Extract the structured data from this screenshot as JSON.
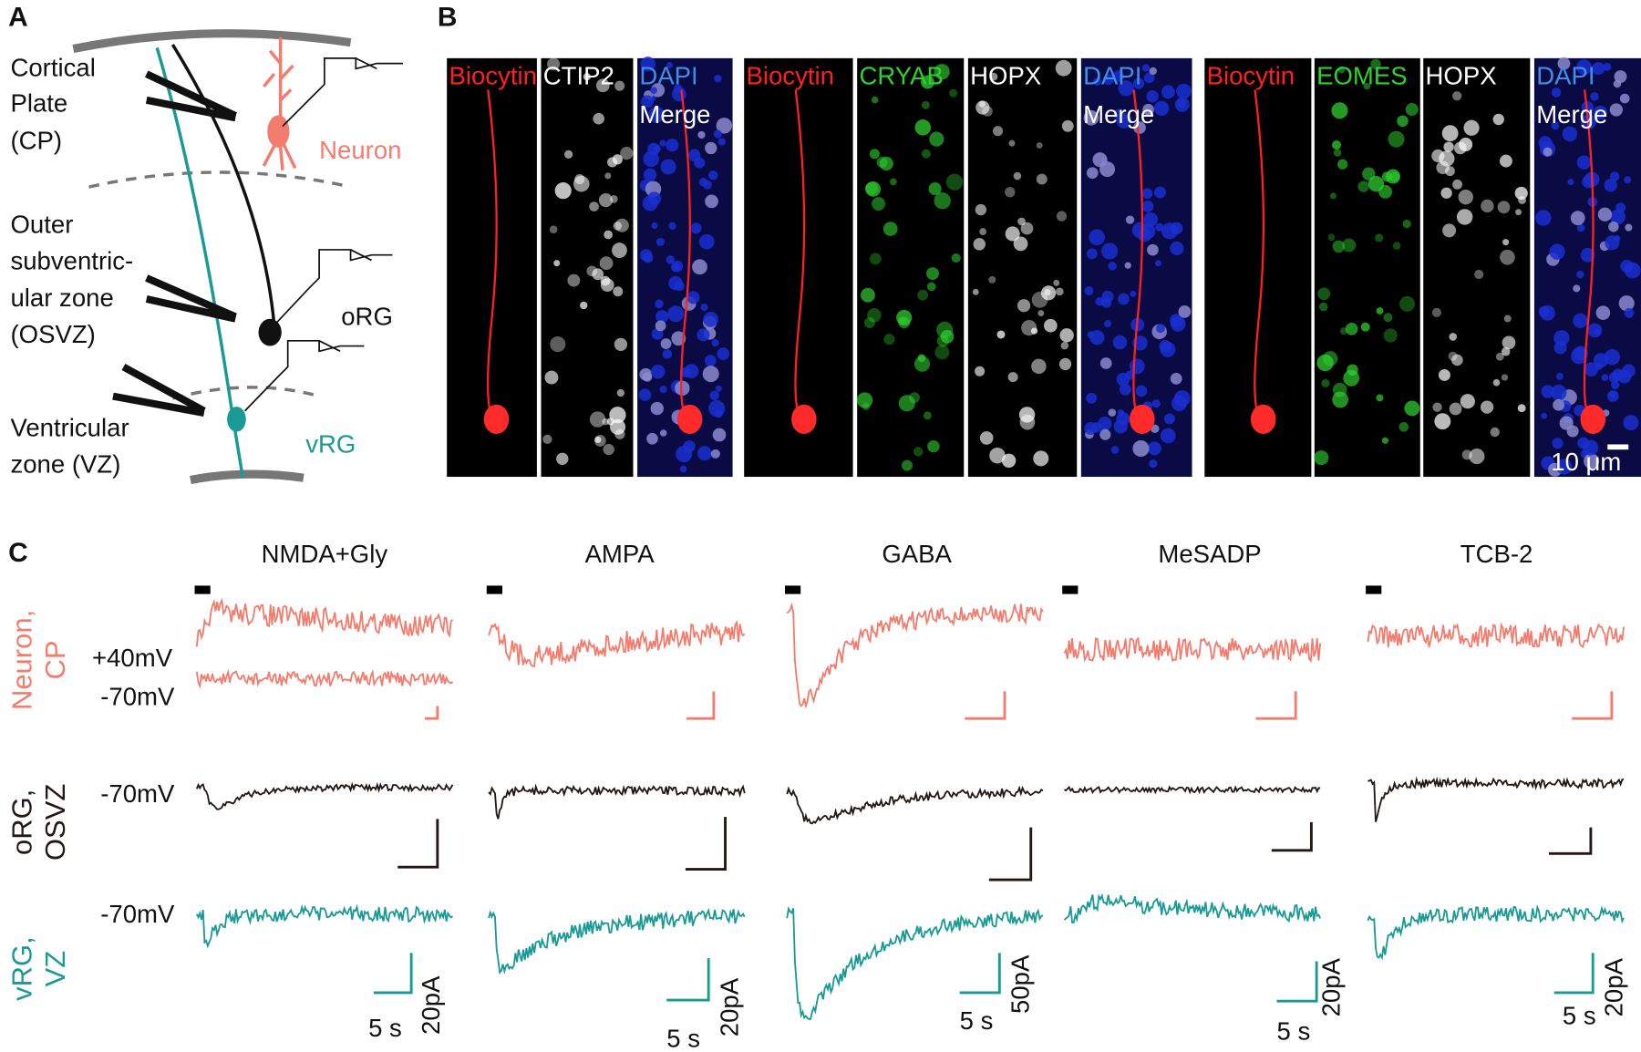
{
  "panel_a": {
    "label": "A",
    "regions": [
      [
        "Cortical",
        "Plate",
        "(CP)"
      ],
      [
        "Outer",
        "subventric-",
        "ular zone",
        "(OSVZ)"
      ],
      [
        "Ventricular",
        "zone (VZ)"
      ]
    ],
    "cells": [
      "Neuron",
      "oRG",
      "vRG"
    ]
  },
  "panel_b": {
    "label": "B",
    "groups": [
      {
        "channels": [
          "Biocytin",
          "CTIP2",
          "DAPI"
        ],
        "colors": [
          "#ff2020",
          "#ffffff",
          "#3f8fe8"
        ],
        "merge": "Merge"
      },
      {
        "channels": [
          "Biocytin",
          "CRYAB",
          "HOPX",
          "DAPI"
        ],
        "colors": [
          "#ff2020",
          "#30d030",
          "#ffffff",
          "#3f8fe8"
        ],
        "merge": "Merge"
      },
      {
        "channels": [
          "Biocytin",
          "EOMES",
          "HOPX",
          "DAPI"
        ],
        "colors": [
          "#ff2020",
          "#30d030",
          "#ffffff",
          "#3f8fe8"
        ],
        "merge": "Merge"
      }
    ],
    "scale_bar": "10 μm"
  },
  "panel_c": {
    "label": "C",
    "drugs": [
      "NMDA+Gly",
      "AMPA",
      "GABA",
      "MeSADP",
      "TCB-2"
    ],
    "rows": [
      {
        "label": [
          "Neuron,",
          "CP"
        ],
        "holding": [
          "+40mV",
          "-70mV"
        ],
        "color": "#f47c6e"
      },
      {
        "label": [
          "oRG,",
          "OSVZ"
        ],
        "holding": [
          "-70mV"
        ],
        "color": "#231815"
      },
      {
        "label": [
          "vRG,",
          "VZ"
        ],
        "holding": [
          "-70mV"
        ],
        "color": "#1a9a94"
      }
    ],
    "scale_bars": [
      {
        "time": "5 s",
        "current": "20pA"
      },
      {
        "time": "5 s",
        "current": "20pA"
      },
      {
        "time": "5 s",
        "current": "50pA"
      },
      {
        "time": "5 s",
        "current": "20pA"
      },
      {
        "time": "5 s",
        "current": "20pA"
      }
    ]
  }
}
